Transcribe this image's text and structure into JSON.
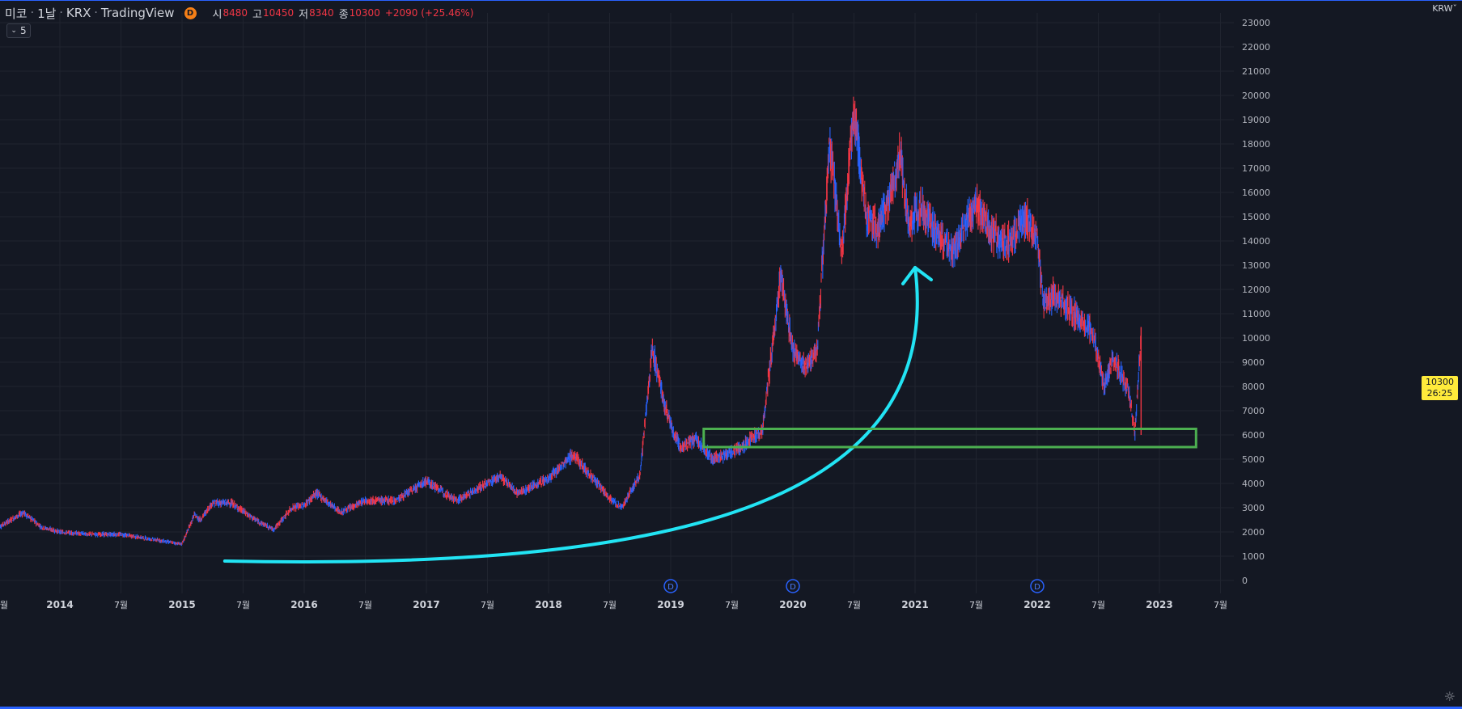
{
  "legend": {
    "symbol": "미코",
    "interval": "1날",
    "exchange": "KRX",
    "source": "TradingView",
    "badge": "D",
    "open_label": "시",
    "open": "8480",
    "high_label": "고",
    "high": "10450",
    "low_label": "저",
    "low": "8340",
    "close_label": "종",
    "close": "10300",
    "change": "+2090 (+25.46%)"
  },
  "indicator_toggle": {
    "icon": "chevron-down-icon",
    "count": "5"
  },
  "currency": "KRW",
  "price_label": {
    "price": "10300",
    "countdown": "26:25"
  },
  "colors": {
    "up": "#f23645",
    "down": "#2962ff",
    "arrow": "#22e4f4",
    "support_box": "#4caf50",
    "background": "#141823",
    "grid": "#20242f"
  },
  "chart_data": {
    "type": "line",
    "title": "",
    "xlabel": "",
    "ylabel": "",
    "x_ticks": [
      "월",
      "2014",
      "7월",
      "2015",
      "7월",
      "2016",
      "7월",
      "2017",
      "7월",
      "2018",
      "7월",
      "2019",
      "7월",
      "2020",
      "7월",
      "2021",
      "7월",
      "2022",
      "7월",
      "2023",
      "7월"
    ],
    "y_ticks": [
      "0",
      "1000",
      "2000",
      "3000",
      "4000",
      "5000",
      "6000",
      "7000",
      "8000",
      "9000",
      "10000",
      "11000",
      "12000",
      "13000",
      "14000",
      "15000",
      "16000",
      "17000",
      "18000",
      "19000",
      "20000",
      "21000",
      "22000",
      "23000"
    ],
    "ylim": [
      0,
      23500
    ],
    "xlim": [
      2013.5,
      2023.7
    ],
    "grid": true,
    "series": [
      {
        "x": [
          2013.5,
          2013.7,
          2013.85,
          2014.0,
          2014.25,
          2014.5,
          2014.75,
          2015.0,
          2015.1,
          2015.15,
          2015.25,
          2015.4,
          2015.6,
          2015.75,
          2015.9,
          2016.0,
          2016.1,
          2016.3,
          2016.5,
          2016.75,
          2017.0,
          2017.25,
          2017.5,
          2017.6,
          2017.75,
          2018.0,
          2018.2,
          2018.3,
          2018.5,
          2018.6,
          2018.75,
          2018.85,
          2018.95,
          2019.03,
          2019.08,
          2019.2,
          2019.35,
          2019.5,
          2019.6,
          2019.75,
          2019.9,
          2020.0,
          2020.1,
          2020.2,
          2020.3,
          2020.4,
          2020.5,
          2020.6,
          2020.7,
          2020.8,
          2020.88,
          2020.95,
          2021.05,
          2021.15,
          2021.3,
          2021.5,
          2021.6,
          2021.75,
          2021.9,
          2022.0,
          2022.05,
          2022.15,
          2022.3,
          2022.45,
          2022.55,
          2022.62,
          2022.75,
          2022.8,
          2022.85
        ],
        "y": [
          2200,
          2800,
          2200,
          2000,
          1900,
          1900,
          1700,
          1500,
          2700,
          2500,
          3200,
          3200,
          2500,
          2100,
          3000,
          3100,
          3600,
          2800,
          3300,
          3300,
          4100,
          3300,
          4000,
          4300,
          3600,
          4200,
          5200,
          4600,
          3400,
          3000,
          4400,
          9600,
          7200,
          6000,
          5500,
          5800,
          5000,
          5300,
          5600,
          6200,
          12500,
          9500,
          8800,
          9600,
          18000,
          13500,
          19500,
          15000,
          14500,
          16000,
          17500,
          14500,
          15500,
          14500,
          13500,
          15500,
          14500,
          13800,
          15000,
          14000,
          11500,
          11800,
          11000,
          10300,
          8000,
          9200,
          7800,
          6000,
          10300
        ]
      }
    ],
    "event_markers": [
      {
        "label": "D",
        "x": 2019.0
      },
      {
        "label": "D",
        "x": 2020.0
      },
      {
        "label": "D",
        "x": 2022.0
      }
    ],
    "annotations": [
      {
        "type": "curved-arrow",
        "from": [
          2015.35,
          800
        ],
        "to": [
          2021.0,
          12900
        ]
      },
      {
        "type": "rectangle",
        "x": [
          2019.27,
          2023.3
        ],
        "y": [
          5500,
          6250
        ]
      }
    ]
  }
}
